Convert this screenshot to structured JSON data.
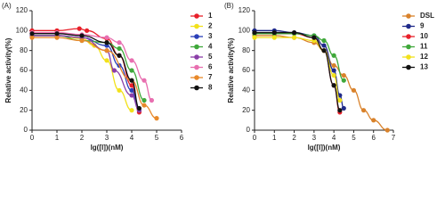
{
  "chart_data": [
    {
      "type": "line",
      "title": "(A)",
      "x_label": "lg([I])(nM)",
      "y_label": "Relative activity(%)",
      "xlim": [
        0,
        6
      ],
      "xticks": [
        0,
        1,
        2,
        3,
        4,
        5,
        6
      ],
      "ylim": [
        0,
        120
      ],
      "yticks": [
        0,
        20,
        40,
        60,
        80,
        100,
        120
      ],
      "series": [
        {
          "name": "1",
          "color": "#e8202a",
          "x": [
            0,
            1,
            1.9,
            2.2,
            3,
            3.5,
            4,
            4.3
          ],
          "values": [
            100,
            100,
            102,
            100,
            92,
            75,
            45,
            18
          ]
        },
        {
          "name": "2",
          "color": "#f2e11b",
          "x": [
            0,
            1,
            2,
            2.5,
            3,
            3.5,
            4
          ],
          "values": [
            95,
            95,
            92,
            85,
            70,
            40,
            20
          ]
        },
        {
          "name": "3",
          "color": "#2a3fb8",
          "x": [
            0,
            1,
            2,
            3,
            3.5,
            4,
            4.3
          ],
          "values": [
            95,
            95,
            93,
            85,
            65,
            40,
            20
          ]
        },
        {
          "name": "4",
          "color": "#3fa83a",
          "x": [
            0,
            1,
            2,
            3,
            3.5,
            4,
            4.5
          ],
          "values": [
            95,
            95,
            90,
            88,
            82,
            60,
            30
          ]
        },
        {
          "name": "5",
          "color": "#8b3fa8",
          "x": [
            0,
            1,
            2,
            3,
            3.3,
            4,
            4.3
          ],
          "values": [
            95,
            95,
            93,
            80,
            60,
            35,
            20
          ]
        },
        {
          "name": "6",
          "color": "#e86fb0",
          "x": [
            0,
            1,
            2,
            3,
            3.5,
            4,
            4.5,
            4.8
          ],
          "values": [
            98,
            98,
            96,
            93,
            88,
            70,
            50,
            30
          ]
        },
        {
          "name": "7",
          "color": "#e8892a",
          "x": [
            0,
            1,
            2,
            3,
            4,
            4.5,
            5
          ],
          "values": [
            93,
            93,
            90,
            80,
            50,
            25,
            12
          ]
        },
        {
          "name": "8",
          "color": "#111111",
          "x": [
            0,
            1,
            2,
            3,
            3.5,
            4,
            4.3
          ],
          "values": [
            97,
            97,
            95,
            88,
            75,
            50,
            22
          ]
        }
      ]
    },
    {
      "type": "line",
      "title": "(B)",
      "x_label": "lg([I])(nM)",
      "y_label": "Relative activity(%)",
      "xlim": [
        0,
        7
      ],
      "xticks": [
        0,
        1,
        2,
        3,
        4,
        5,
        6,
        7
      ],
      "ylim": [
        0,
        120
      ],
      "yticks": [
        0,
        20,
        40,
        60,
        80,
        100,
        120
      ],
      "series": [
        {
          "name": "DSL",
          "color": "#d9822b",
          "x": [
            0,
            1,
            2,
            3,
            3.5,
            4,
            4.5,
            5,
            5.5,
            6,
            6.7
          ],
          "values": [
            95,
            95,
            93,
            88,
            80,
            65,
            55,
            40,
            20,
            10,
            0
          ]
        },
        {
          "name": "9",
          "color": "#1f2a8a",
          "x": [
            0,
            1,
            2,
            3,
            3.5,
            4,
            4.3,
            4.5
          ],
          "values": [
            100,
            100,
            98,
            95,
            85,
            60,
            35,
            22
          ]
        },
        {
          "name": "10",
          "color": "#e8202a",
          "x": [
            0,
            1,
            2,
            3,
            3.5,
            4,
            4.3
          ],
          "values": [
            97,
            97,
            97,
            93,
            80,
            45,
            18
          ]
        },
        {
          "name": "11",
          "color": "#3fa83a",
          "x": [
            0,
            1,
            2,
            3,
            3.5,
            4,
            4.5
          ],
          "values": [
            97,
            97,
            97,
            95,
            90,
            75,
            50
          ]
        },
        {
          "name": "12",
          "color": "#f2e11b",
          "x": [
            0,
            1,
            2,
            3,
            3.5,
            4,
            4.3
          ],
          "values": [
            93,
            93,
            93,
            90,
            80,
            55,
            30
          ]
        },
        {
          "name": "13",
          "color": "#111111",
          "x": [
            0,
            1,
            2,
            3,
            3.5,
            4,
            4.3
          ],
          "values": [
            98,
            98,
            98,
            93,
            80,
            45,
            20
          ]
        }
      ]
    }
  ]
}
